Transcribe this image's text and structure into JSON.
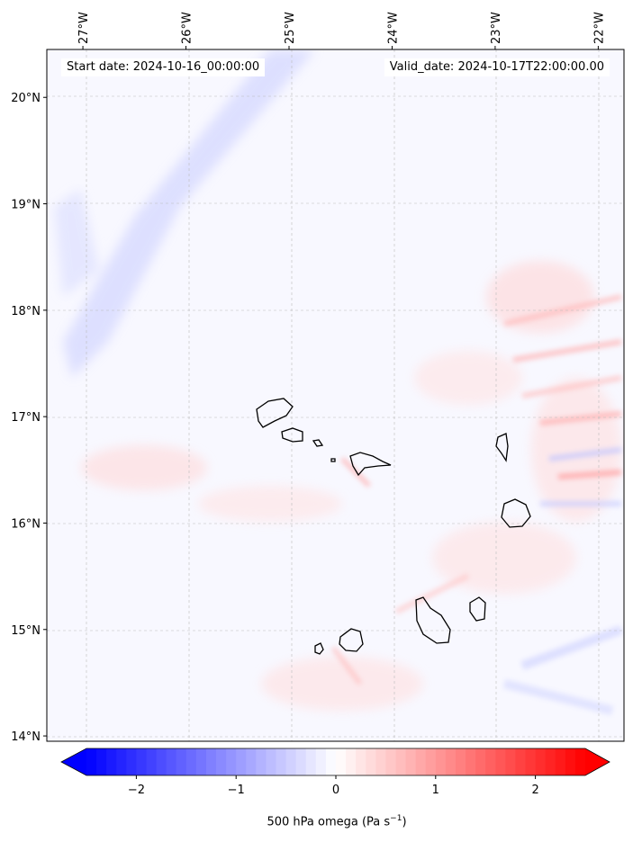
{
  "header": {
    "start_date": "Start date: 2024-10-16_00:00:00",
    "valid_date": "Valid_date: 2024-10-17T22:00:00.00"
  },
  "map": {
    "lon_labels": [
      "27°W",
      "26°W",
      "25°W",
      "24°W",
      "23°W",
      "22°W"
    ],
    "lat_labels": [
      "20°N",
      "19°N",
      "18°N",
      "17°N",
      "16°N",
      "15°N",
      "14°N"
    ],
    "lon_range": [
      -27.35,
      -21.75
    ],
    "lat_range": [
      13.95,
      20.45
    ],
    "gridlines": true
  },
  "colorbar": {
    "tick_labels": [
      "−2",
      "−1",
      "0",
      "1",
      "2"
    ],
    "label_prefix": "500 hPa omega (Pa s",
    "label_exp": "−1",
    "label_suffix": ")",
    "range": [
      -2.5,
      2.5
    ],
    "colormap": "bwr",
    "colors": {
      "low": "#0000ff",
      "mid": "#ffffff",
      "high": "#ff0000"
    }
  }
}
